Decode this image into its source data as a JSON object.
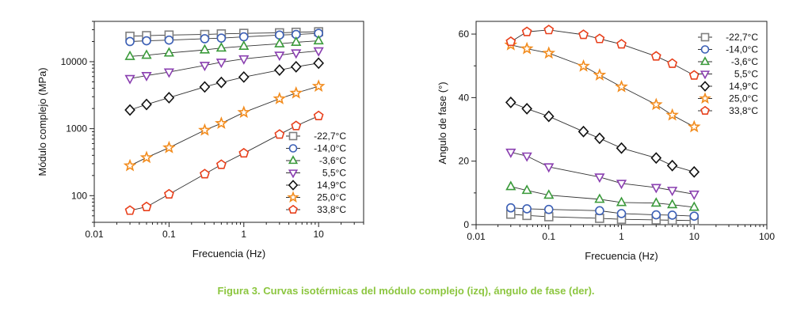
{
  "caption": "Figura 3. Curvas isotérmicas del módulo complejo (izq), ángulo de fase (der).",
  "series_styles": [
    {
      "name": "-22,7°C",
      "color": "#7f7f7f",
      "marker": "square"
    },
    {
      "name": "-14,0°C",
      "color": "#3b5fb5",
      "marker": "circle"
    },
    {
      "name": "-3,6°C",
      "color": "#3a9a3a",
      "marker": "triangle-up"
    },
    {
      "name": "5,5°C",
      "color": "#8a3fb0",
      "marker": "triangle-down"
    },
    {
      "name": "14,9°C",
      "color": "#111111",
      "marker": "diamond"
    },
    {
      "name": "25,0°C",
      "color": "#f28c1e",
      "marker": "star"
    },
    {
      "name": "33,8°C",
      "color": "#e8401c",
      "marker": "pentagon"
    }
  ],
  "chart_data": [
    {
      "type": "scatter",
      "xlabel": "Frecuencia (Hz)",
      "ylabel": "Módulo complejo (MPa)",
      "xscale": "log",
      "yscale": "log",
      "xlim": [
        0.01,
        40
      ],
      "ylim": [
        40,
        40000
      ],
      "xticks": [
        0.01,
        0.1,
        1,
        10
      ],
      "xtick_labels": [
        "0.01",
        "0.1",
        "1",
        "10"
      ],
      "yticks": [
        100,
        1000,
        10000
      ],
      "ytick_labels": [
        "100",
        "1000",
        "10000"
      ],
      "legend_position": "bottom-right",
      "series": [
        {
          "name": "-22,7°C",
          "x": [
            0.03,
            0.05,
            0.1,
            0.3,
            0.5,
            1,
            3,
            5,
            10
          ],
          "values": [
            24000,
            24500,
            25000,
            25500,
            26000,
            26500,
            27000,
            27500,
            28000
          ]
        },
        {
          "name": "-14,0°C",
          "x": [
            0.03,
            0.05,
            0.1,
            0.3,
            0.5,
            1,
            3,
            5,
            10
          ],
          "values": [
            20000,
            20500,
            21000,
            22000,
            22500,
            23500,
            25000,
            25500,
            26500
          ]
        },
        {
          "name": "-3,6°C",
          "x": [
            0.03,
            0.05,
            0.1,
            0.3,
            0.5,
            1,
            3,
            5,
            10
          ],
          "values": [
            12000,
            12500,
            13500,
            15000,
            16000,
            17000,
            18500,
            19500,
            20500
          ]
        },
        {
          "name": "5,5°C",
          "x": [
            0.03,
            0.05,
            0.1,
            0.3,
            0.5,
            1,
            3,
            5,
            10
          ],
          "values": [
            5600,
            6200,
            7000,
            8800,
            9800,
            11000,
            12500,
            13500,
            14500
          ]
        },
        {
          "name": "14,9°C",
          "x": [
            0.03,
            0.05,
            0.1,
            0.3,
            0.5,
            1,
            3,
            5,
            10
          ],
          "values": [
            1900,
            2300,
            2900,
            4200,
            4900,
            5900,
            7500,
            8400,
            9500
          ]
        },
        {
          "name": "25,0°C",
          "x": [
            0.03,
            0.05,
            0.1,
            0.3,
            0.5,
            1,
            3,
            5,
            10
          ],
          "values": [
            280,
            370,
            520,
            950,
            1200,
            1750,
            2800,
            3400,
            4300
          ]
        },
        {
          "name": "33,8°C",
          "x": [
            0.03,
            0.05,
            0.1,
            0.3,
            0.5,
            1,
            3,
            5,
            10
          ],
          "values": [
            60,
            68,
            105,
            210,
            290,
            430,
            820,
            1100,
            1550
          ]
        }
      ]
    },
    {
      "type": "scatter",
      "xlabel": "Frecuencia (Hz)",
      "ylabel": "Angulo de fase (°)",
      "xscale": "log",
      "yscale": "linear",
      "xlim": [
        0.01,
        100
      ],
      "ylim": [
        0,
        64
      ],
      "xticks": [
        0.01,
        0.1,
        1,
        10,
        100
      ],
      "xtick_labels": [
        "0.01",
        "0.1",
        "1",
        "10",
        "100"
      ],
      "yticks": [
        0,
        20,
        40,
        60
      ],
      "ytick_labels": [
        "0",
        "20",
        "40",
        "60"
      ],
      "legend_position": "top-right",
      "series": [
        {
          "name": "-22,7°C",
          "x": [
            0.03,
            0.05,
            0.1,
            0.5,
            1,
            3,
            5,
            10
          ],
          "values": [
            3.3,
            2.9,
            2.5,
            2.0,
            1.7,
            1.5,
            1.4,
            1.3
          ]
        },
        {
          "name": "-14,0°C",
          "x": [
            0.03,
            0.05,
            0.1,
            0.5,
            1,
            3,
            5,
            10
          ],
          "values": [
            5.3,
            5.0,
            4.8,
            4.4,
            3.5,
            3.1,
            3.0,
            2.7
          ]
        },
        {
          "name": "-3,6°C",
          "x": [
            0.03,
            0.05,
            0.1,
            0.5,
            1,
            3,
            5,
            10
          ],
          "values": [
            12.0,
            10.8,
            9.3,
            8.0,
            7.0,
            6.8,
            6.3,
            5.5
          ]
        },
        {
          "name": "5,5°C",
          "x": [
            0.03,
            0.05,
            0.1,
            0.5,
            1,
            3,
            5,
            10
          ],
          "values": [
            22.8,
            21.6,
            18.2,
            15.0,
            13.0,
            11.7,
            10.8,
            9.6
          ]
        },
        {
          "name": "14,9°C",
          "x": [
            0.03,
            0.05,
            0.1,
            0.3,
            0.5,
            1,
            3,
            5,
            10
          ],
          "values": [
            38.5,
            36.5,
            34.1,
            29.3,
            27.2,
            24.1,
            21.0,
            18.6,
            16.6
          ]
        },
        {
          "name": "25,0°C",
          "x": [
            0.03,
            0.05,
            0.1,
            0.3,
            0.5,
            1,
            3,
            5,
            10
          ],
          "values": [
            56.6,
            55.4,
            54.0,
            49.9,
            47.1,
            43.4,
            37.8,
            34.5,
            30.8
          ]
        },
        {
          "name": "33,8°C",
          "x": [
            0.03,
            0.05,
            0.1,
            0.3,
            0.5,
            1,
            3,
            5,
            10
          ],
          "values": [
            57.6,
            60.7,
            61.3,
            59.8,
            58.5,
            56.8,
            53.0,
            50.7,
            47.0
          ]
        }
      ]
    }
  ]
}
